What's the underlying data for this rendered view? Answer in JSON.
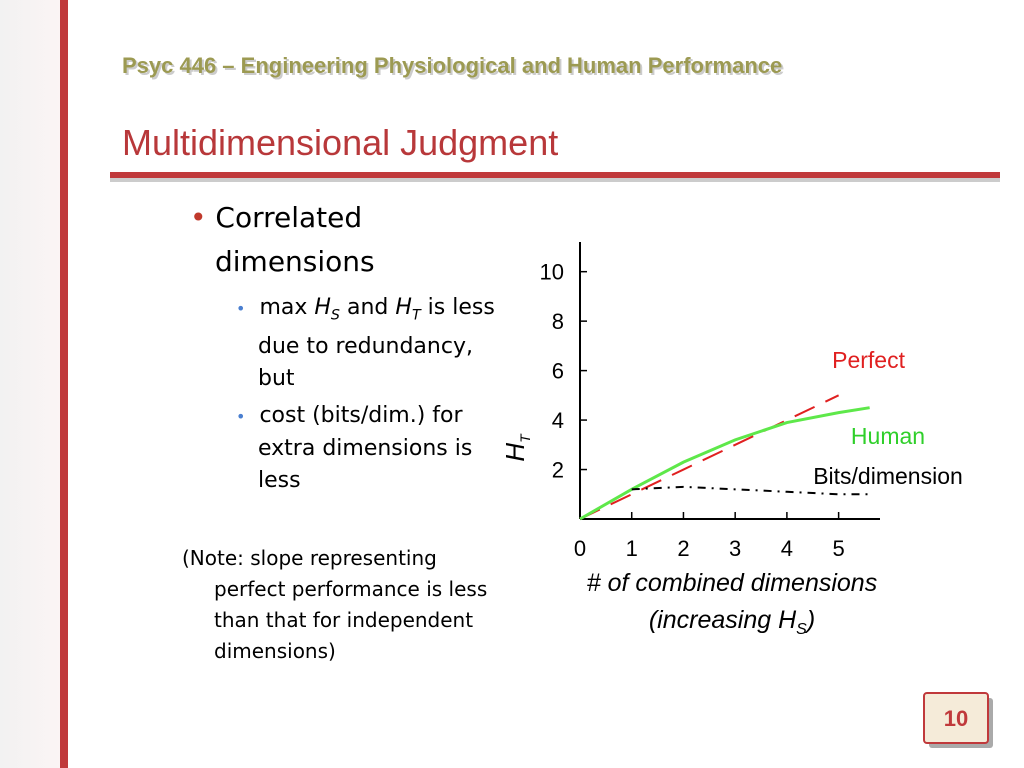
{
  "header": {
    "course": "Psyc 446 – Engineering Physiological and Human Performance",
    "title": "Multidimensional Judgment"
  },
  "bullets": [
    {
      "text": "Correlated dimensions"
    },
    {
      "runs": [
        "max ",
        "H",
        "S",
        " and ",
        "H",
        "T",
        " is less due to redundancy, but"
      ]
    },
    {
      "text": "cost (bits/dim.) for extra dimensions is less"
    }
  ],
  "note": "(Note: slope representing perfect performance is less than that for independent dimensions)",
  "page_number": "10",
  "chart_data": {
    "type": "line",
    "ylabel": {
      "main": "H",
      "sub": "T"
    },
    "xlabel": {
      "line1": "# of combined dimensions",
      "line2": "(increasing H",
      "line2_sub": "S",
      "line2_end": ")"
    },
    "x": [
      0,
      1,
      2,
      3,
      4,
      5,
      5.6
    ],
    "xlim": [
      0,
      5.8
    ],
    "xticks": [
      0,
      1,
      2,
      3,
      4,
      5
    ],
    "ylim": [
      0,
      11.2
    ],
    "yticks": [
      2,
      4,
      6,
      8,
      10
    ],
    "series": [
      {
        "name": "Perfect",
        "color": "#e02020",
        "style": "dash",
        "values": [
          0,
          1,
          2,
          3,
          4,
          5,
          null
        ]
      },
      {
        "name": "Human",
        "color": "#5ee84a",
        "style": "solid",
        "values": [
          0,
          1.2,
          2.3,
          3.2,
          3.9,
          4.3,
          4.5
        ]
      },
      {
        "name": "Bits/dimension",
        "color": "#000000",
        "style": "dashdot",
        "values": [
          null,
          1.2,
          1.3,
          1.2,
          1.1,
          1.0,
          1.0
        ]
      }
    ]
  }
}
